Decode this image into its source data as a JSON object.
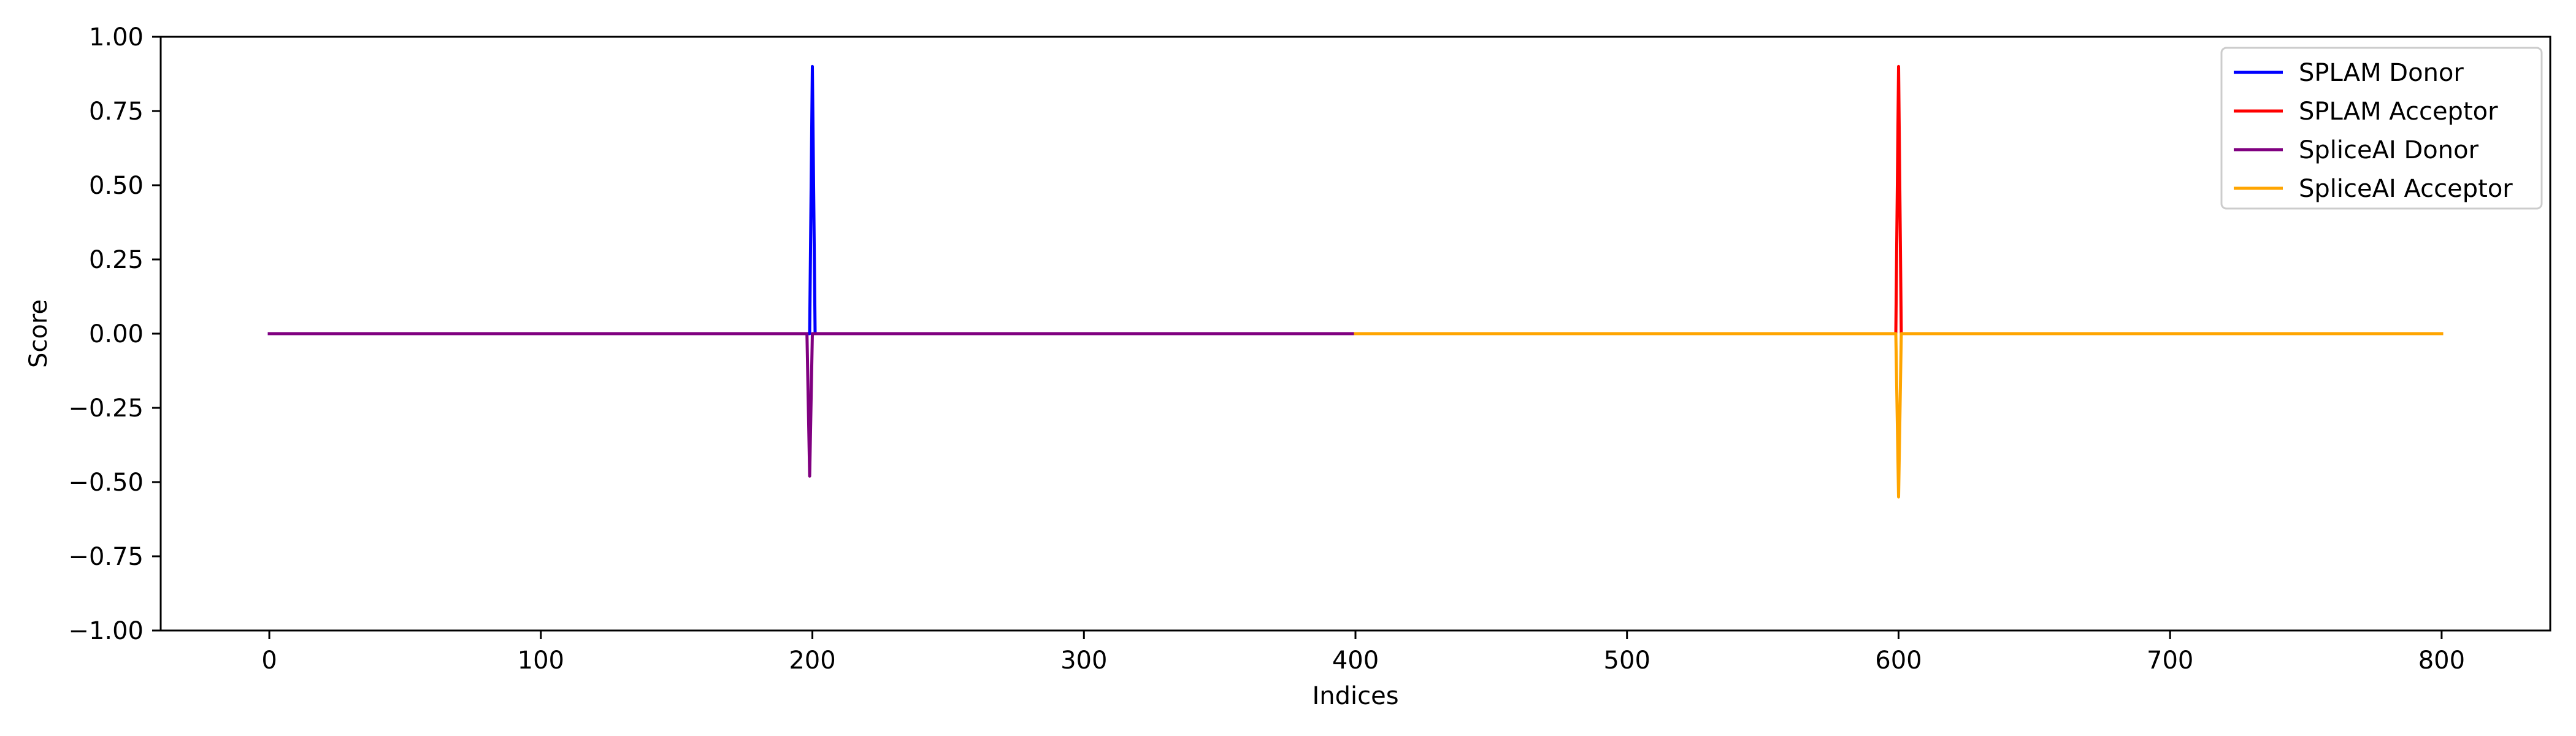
{
  "chart_data": {
    "type": "line",
    "title": "",
    "xlabel": "Indices",
    "ylabel": "Score",
    "xlim": [
      -40,
      840
    ],
    "ylim": [
      -1.0,
      1.0
    ],
    "grid": false,
    "legend_position": "top-right",
    "x_ticks": [
      0,
      100,
      200,
      300,
      400,
      500,
      600,
      700,
      800
    ],
    "x_tick_labels": [
      "0",
      "100",
      "200",
      "300",
      "400",
      "500",
      "600",
      "700",
      "800"
    ],
    "y_ticks": [
      1.0,
      0.75,
      0.5,
      0.25,
      0.0,
      -0.25,
      -0.5,
      -0.75,
      -1.0
    ],
    "y_tick_labels": [
      "1.00",
      "0.75",
      "0.50",
      "0.25",
      "0.00",
      "−0.25",
      "−0.50",
      "−0.75",
      "−1.00"
    ],
    "series": [
      {
        "name": "SPLAM Donor",
        "color": "#0000ff",
        "x": [
          0,
          198,
          199,
          200,
          201,
          202,
          400
        ],
        "y": [
          0,
          0,
          0,
          0.9,
          0,
          0,
          0
        ]
      },
      {
        "name": "SPLAM Acceptor",
        "color": "#ff0000",
        "x": [
          400,
          598,
          599,
          600,
          601,
          602,
          800
        ],
        "y": [
          0,
          0,
          0,
          0.9,
          0,
          0,
          0
        ]
      },
      {
        "name": "SpliceAI Donor",
        "color": "#800080",
        "x": [
          0,
          197,
          198,
          199,
          200,
          201,
          400
        ],
        "y": [
          0,
          0,
          0,
          -0.48,
          0,
          0,
          0
        ]
      },
      {
        "name": "SpliceAI Acceptor",
        "color": "#ffa500",
        "x": [
          400,
          598,
          599,
          600,
          601,
          602,
          800
        ],
        "y": [
          0,
          0,
          0,
          -0.55,
          0,
          0,
          0
        ]
      }
    ]
  }
}
